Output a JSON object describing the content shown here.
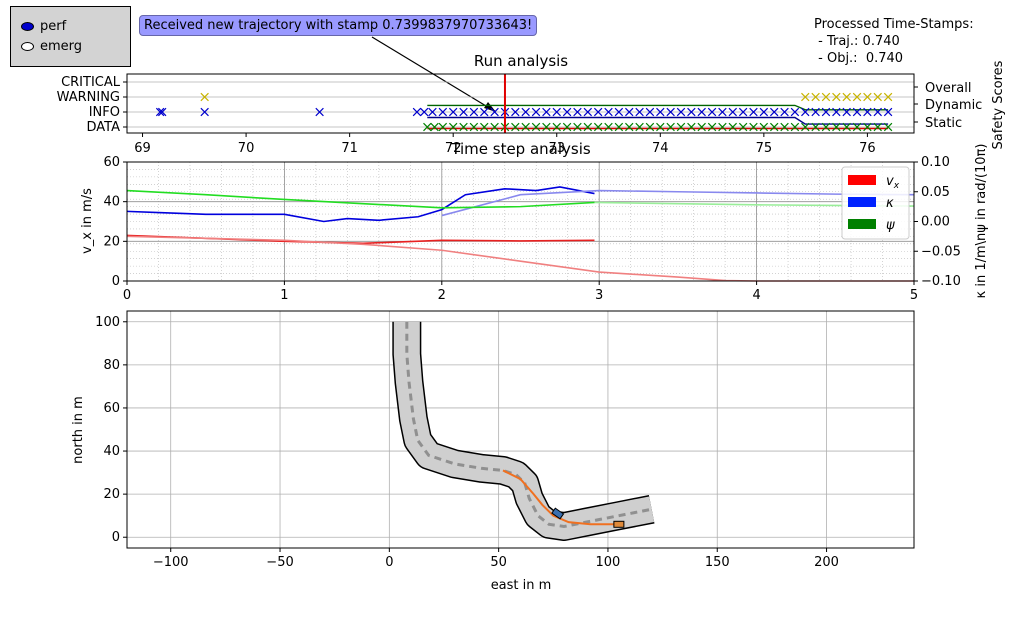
{
  "controls": {
    "radio_options": [
      {
        "label": "perf",
        "selected": true
      },
      {
        "label": "emerg",
        "selected": false
      }
    ]
  },
  "annotation": {
    "text": "Received new trajectory with stamp 0.7399837970733643!"
  },
  "status": {
    "heading": "Processed Time-Stamps:",
    "traj_line": " - Traj.: 0.740",
    "obj_line": " - Obj.:  0.740"
  },
  "colors": {
    "info": "#0000cc",
    "warning": "#c8b400",
    "data": "#008000",
    "cursor": "#e00000",
    "vx": "#e82020",
    "vx_ref": "#f08080",
    "kappa": "#0000dd",
    "kappa_ref": "#8888ee",
    "psi": "#22dd22",
    "psi_ref": "#99ee99",
    "path": "#f07020"
  },
  "chart_data": [
    {
      "type": "scatter",
      "title": "Run analysis",
      "xlim": [
        68.85,
        76.45
      ],
      "xticks": [
        69,
        70,
        71,
        72,
        73,
        74,
        75,
        76
      ],
      "ycategories": [
        "DATA",
        "INFO",
        "WARNING",
        "CRITICAL"
      ],
      "y2label": "Safety Scores",
      "y2categories": [
        "Static",
        "Dynamic",
        "Overall"
      ],
      "cursor_x": 72.5,
      "markers": {
        "info": [
          69.17,
          69.19,
          69.6,
          70.71,
          71.65,
          71.72,
          71.8,
          71.9,
          72.0,
          72.1,
          72.2,
          72.3,
          72.4,
          72.5,
          72.6,
          72.7,
          72.8,
          72.9,
          73.0,
          73.1,
          73.2,
          73.3,
          73.4,
          73.5,
          73.6,
          73.7,
          73.8,
          73.9,
          74.0,
          74.1,
          74.2,
          74.3,
          74.4,
          74.5,
          74.6,
          74.7,
          74.8,
          74.9,
          75.0,
          75.1,
          75.2,
          75.3,
          75.4,
          75.5,
          75.6,
          75.7,
          75.8,
          75.9,
          76.0,
          76.1,
          76.2
        ],
        "warning": [
          69.6,
          75.4,
          75.5,
          75.6,
          75.7,
          75.8,
          75.9,
          76.0,
          76.1,
          76.2
        ],
        "data": [
          71.75,
          71.82,
          71.9,
          72.0,
          72.1,
          72.2,
          72.3,
          72.4,
          72.5,
          72.6,
          72.7,
          72.8,
          72.9,
          73.0,
          73.1,
          73.2,
          73.3,
          73.4,
          73.5,
          73.6,
          73.7,
          73.8,
          73.9,
          74.0,
          74.1,
          74.2,
          74.3,
          74.4,
          74.5,
          74.6,
          74.7,
          74.8,
          74.9,
          75.0,
          75.1,
          75.2,
          75.3,
          75.4,
          75.5,
          75.6,
          75.7,
          75.8,
          75.9,
          76.0,
          76.1,
          76.2
        ]
      },
      "score_lines": [
        {
          "name": "Overall",
          "x": [
            71.75,
            75.3,
            75.4,
            76.2
          ],
          "y": [
            3.6,
            3.6,
            3.2,
            3.2
          ]
        },
        {
          "name": "Dynamic",
          "x": [
            71.75,
            75.3,
            75.4,
            76.2
          ],
          "y": [
            2.5,
            2.5,
            1.9,
            1.9
          ]
        },
        {
          "name": "Static",
          "x": [
            71.75,
            76.2
          ],
          "y": [
            1.5,
            1.5
          ]
        }
      ]
    },
    {
      "type": "line",
      "title": "Time step analysis",
      "xlim": [
        0,
        5
      ],
      "ylim": [
        0,
        60
      ],
      "y2lim": [
        -0.1,
        0.1
      ],
      "xticks": [
        0,
        1,
        2,
        3,
        4,
        5
      ],
      "yticks": [
        0,
        20,
        40,
        60
      ],
      "y2ticks": [
        "0.10",
        "0.05",
        "0.00",
        "−0.05",
        "−0.10"
      ],
      "ylabel": "v_x in m/s",
      "y2label": "κ in 1/m\\nψ in rad/(10π)",
      "legend": [
        "v_x",
        "κ",
        "ψ"
      ],
      "legend_placement": "top-right",
      "series": [
        {
          "name": "v_x",
          "x": [
            0,
            0.5,
            1.0,
            1.5,
            2.0,
            2.5,
            2.97
          ],
          "y": [
            23,
            21.5,
            20,
            19,
            20.5,
            20.2,
            20.5
          ]
        },
        {
          "name": "v_x reference",
          "x": [
            0,
            0.5,
            1.0,
            1.5,
            2.0,
            2.5,
            3.0,
            3.5,
            3.8,
            4.0,
            5.0
          ],
          "y": [
            22.5,
            21.5,
            20.5,
            18.5,
            15.5,
            10,
            4.5,
            2,
            0.2,
            0,
            0
          ]
        },
        {
          "name": "κ",
          "x": [
            0,
            0.2,
            0.5,
            1.0,
            1.25,
            1.4,
            1.6,
            1.85,
            2.0,
            2.15,
            2.4,
            2.6,
            2.75,
            2.97
          ],
          "y": [
            0.017,
            0.015,
            0.012,
            0.012,
            0.0,
            0.005,
            0.002,
            0.008,
            0.02,
            0.045,
            0.055,
            0.052,
            0.058,
            0.047
          ]
        },
        {
          "name": "κ reference",
          "x": [
            2.0,
            2.5,
            3.0,
            3.5,
            4.0,
            4.5,
            5.0
          ],
          "y": [
            0.01,
            0.045,
            0.052,
            0.05,
            0.048,
            0.046,
            0.045
          ]
        },
        {
          "name": "ψ",
          "x": [
            0,
            0.5,
            1.0,
            1.5,
            2.0,
            2.5,
            2.97
          ],
          "y": [
            0.052,
            0.045,
            0.037,
            0.03,
            0.023,
            0.025,
            0.032
          ]
        },
        {
          "name": "ψ reference",
          "x": [
            2.97,
            3.5,
            4.0,
            4.5,
            5.0
          ],
          "y": [
            0.032,
            0.03,
            0.028,
            0.027,
            0.026
          ]
        }
      ]
    },
    {
      "type": "line",
      "xlabel": "east in m",
      "ylabel": "north in m",
      "xlim": [
        -120,
        240
      ],
      "ylim": [
        -5,
        105
      ],
      "xticks": [
        -100,
        -50,
        0,
        50,
        100,
        150,
        200
      ],
      "yticks": [
        0,
        20,
        40,
        60,
        80,
        100
      ],
      "grid": true,
      "centerline": {
        "x": [
          8,
          8,
          9,
          11,
          13,
          18,
          30,
          42,
          52,
          58,
          62,
          64,
          66,
          68,
          73,
          80,
          90,
          105,
          120
        ],
        "y": [
          100,
          85,
          72,
          55,
          45,
          38,
          34,
          32,
          31,
          29,
          25,
          18,
          14,
          10,
          6,
          5,
          7,
          10,
          13
        ]
      },
      "trajectory": {
        "x": [
          52,
          60,
          66,
          70,
          75,
          82,
          92,
          105
        ],
        "y": [
          31,
          27,
          20,
          15,
          10,
          7,
          6,
          6
        ]
      },
      "ego_vehicle": {
        "x": 77,
        "y": 11
      },
      "target_vehicle": {
        "x": 105,
        "y": 6
      }
    }
  ]
}
